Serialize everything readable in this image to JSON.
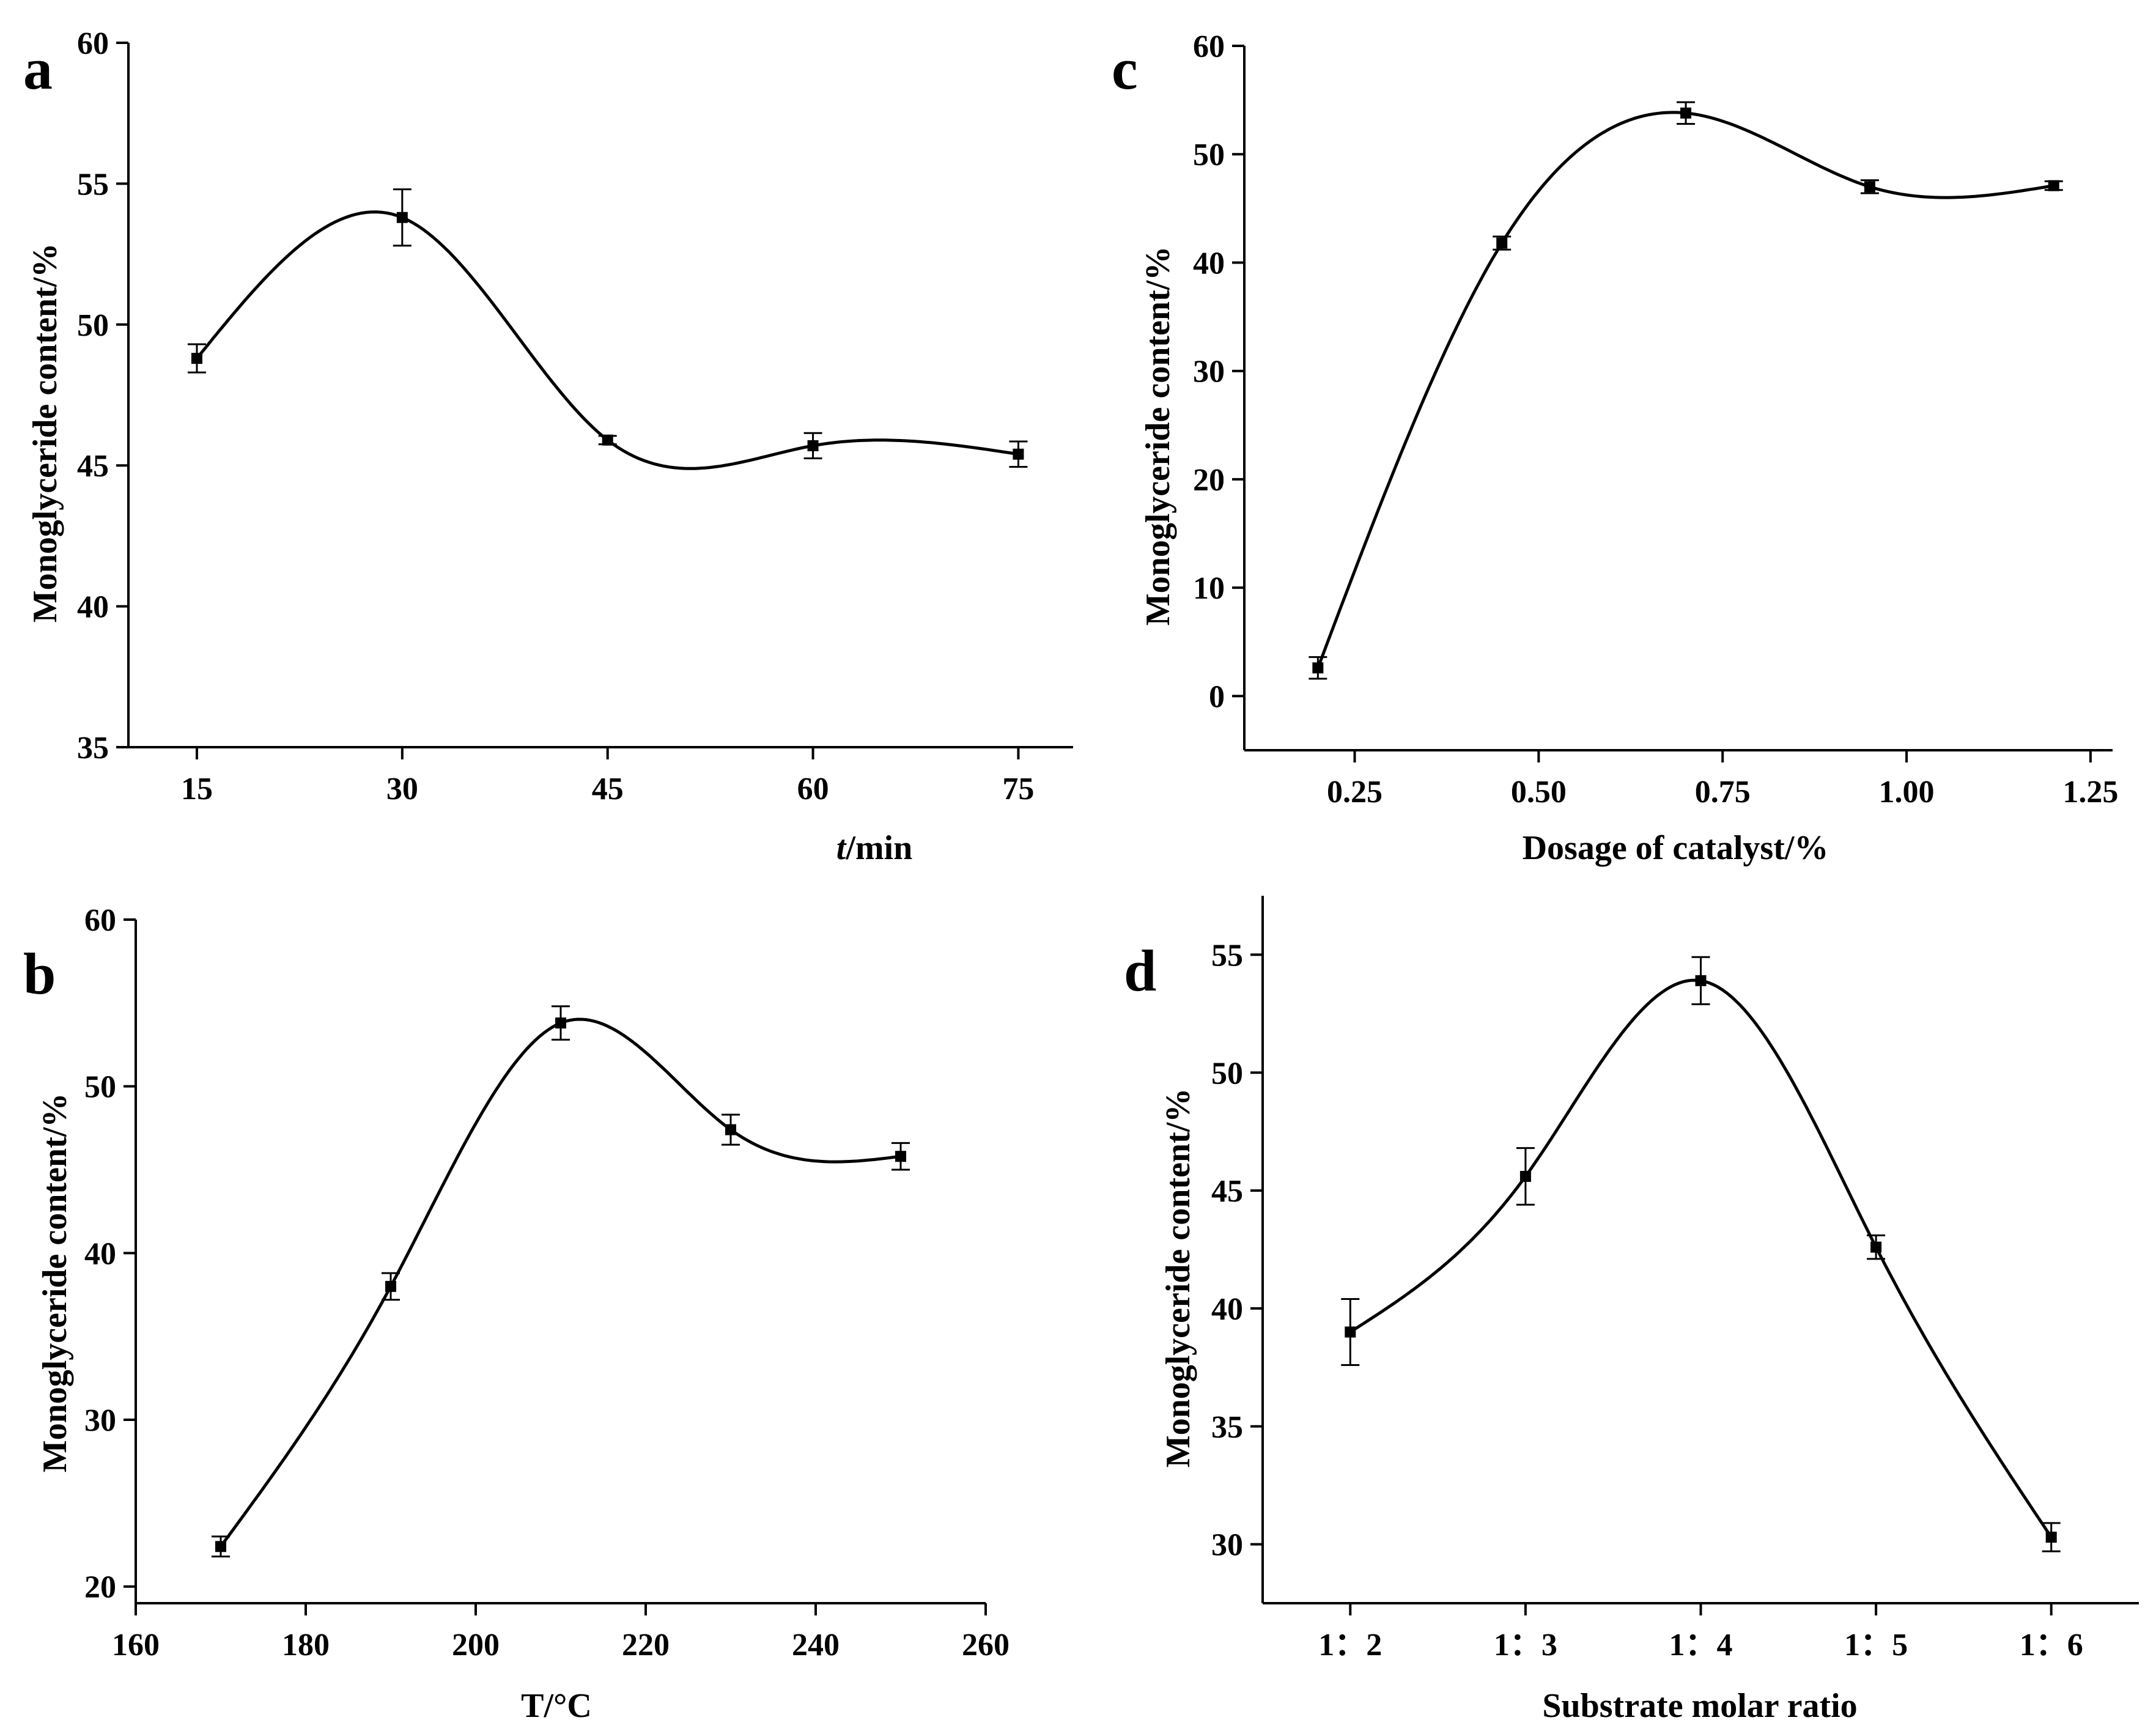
{
  "chart_data": [
    {
      "type": "line",
      "panel_label": "a",
      "xlabel_italic": "t",
      "xlabel_rest": "/min",
      "ylabel": "Monoglyceride content/%",
      "x": [
        15,
        30,
        45,
        60,
        75
      ],
      "y": [
        48.8,
        53.8,
        45.9,
        45.7,
        45.4
      ],
      "error": [
        0.5,
        1.0,
        0.15,
        0.45,
        0.45
      ],
      "xlim": [
        10,
        79
      ],
      "ylim": [
        35,
        60
      ],
      "xticks": [
        15,
        30,
        45,
        60,
        75
      ],
      "yticks": [
        35,
        40,
        45,
        50,
        55,
        60
      ],
      "xtick_labels": [
        "15",
        "30",
        "45",
        "60",
        "75"
      ],
      "ytick_labels": [
        "35",
        "40",
        "45",
        "50",
        "55",
        "60"
      ]
    },
    {
      "type": "line",
      "panel_label": "b",
      "xlabel": "T/°C",
      "ylabel": "Monoglyceride content/%",
      "x": [
        170,
        190,
        210,
        230,
        250
      ],
      "y": [
        22.4,
        38.0,
        53.8,
        47.4,
        45.8
      ],
      "error": [
        0.6,
        0.8,
        1.0,
        0.9,
        0.8
      ],
      "xlim": [
        160,
        260
      ],
      "ylim": [
        19,
        60
      ],
      "xticks": [
        160,
        180,
        200,
        220,
        240,
        260
      ],
      "yticks": [
        20,
        30,
        40,
        50,
        60
      ],
      "xtick_labels": [
        "160",
        "180",
        "200",
        "220",
        "240",
        "260"
      ],
      "ytick_labels": [
        "20",
        "30",
        "40",
        "50",
        "60"
      ]
    },
    {
      "type": "line",
      "panel_label": "c",
      "xlabel": "Dosage of catalyst/%",
      "ylabel": "Monoglyceride content/%",
      "x": [
        0.2,
        0.45,
        0.7,
        0.95,
        1.2
      ],
      "y": [
        2.6,
        41.8,
        53.8,
        47.0,
        47.1
      ],
      "error": [
        1.0,
        0.6,
        1.0,
        0.6,
        0.4
      ],
      "xlim": [
        0.1,
        1.28
      ],
      "ylim": [
        -5,
        60
      ],
      "xticks": [
        0.25,
        0.5,
        0.75,
        1.0,
        1.25
      ],
      "yticks": [
        0,
        10,
        20,
        30,
        40,
        50,
        60
      ],
      "xtick_labels": [
        "0.25",
        "0.50",
        "0.75",
        "1.00",
        "1.25"
      ],
      "ytick_labels": [
        "0",
        "10",
        "20",
        "30",
        "40",
        "50",
        "60"
      ]
    },
    {
      "type": "line",
      "panel_label": "d",
      "xlabel": "Substrate molar ratio",
      "ylabel": "Monoglyceride content/%",
      "x": [
        2,
        3,
        4,
        5,
        6
      ],
      "y": [
        39.0,
        45.6,
        53.9,
        42.6,
        30.3
      ],
      "error": [
        1.4,
        1.2,
        1.0,
        0.5,
        0.6
      ],
      "xlim": [
        1.5,
        6.5
      ],
      "ylim": [
        27.5,
        57.5
      ],
      "xticks": [
        2,
        3,
        4,
        5,
        6
      ],
      "yticks": [
        30,
        35,
        40,
        45,
        50,
        55
      ],
      "xtick_labels": [
        "1：2",
        "1：3",
        "1：4",
        "1：5",
        "1：6"
      ],
      "ytick_labels": [
        "30",
        "35",
        "40",
        "45",
        "50",
        "55"
      ]
    }
  ]
}
